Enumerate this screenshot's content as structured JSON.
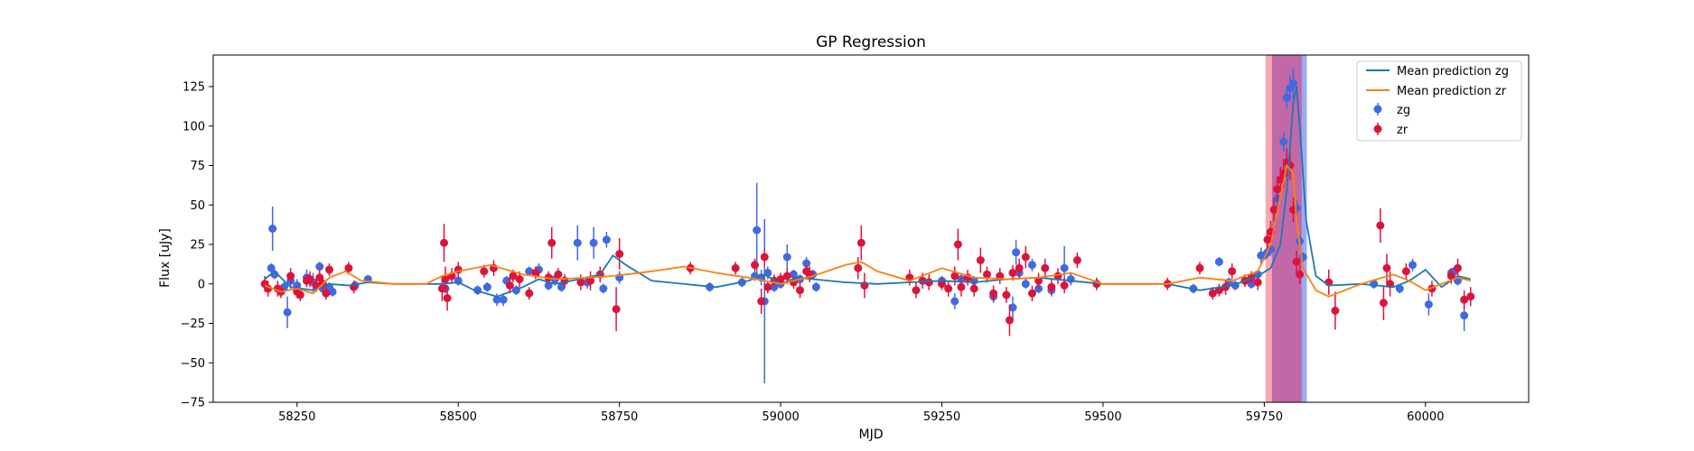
{
  "chart_data": {
    "type": "scatter",
    "title": "GP Regression",
    "xlabel": "MJD",
    "ylabel": "Flux [uJy]",
    "xlim": [
      58120,
      60160
    ],
    "ylim": [
      -75,
      145
    ],
    "xticks": [
      58250,
      58500,
      58750,
      59000,
      59250,
      59500,
      59750,
      60000
    ],
    "yticks": [
      -75,
      -50,
      -25,
      0,
      25,
      50,
      75,
      100,
      125
    ],
    "grid": false,
    "legend_position": "top-right",
    "shaded_regions": [
      {
        "x0": 59752,
        "x1": 59808,
        "color": "#f4a0a6"
      },
      {
        "x0": 59762,
        "x1": 59816,
        "color": "#8fa3f0"
      },
      {
        "x0": 59762,
        "x1": 59808,
        "color": "#c265a4"
      }
    ],
    "series": [
      {
        "name": "Mean prediction zg",
        "kind": "line",
        "color": "#1f77b4",
        "x": [
          58200,
          58215,
          58240,
          58275,
          58300,
          58330,
          58360,
          58400,
          58450,
          58475,
          58500,
          58525,
          58560,
          58600,
          58625,
          58650,
          58675,
          58700,
          58720,
          58740,
          58760,
          58800,
          58900,
          58950,
          58975,
          59000,
          59025,
          59050,
          59100,
          59150,
          59200,
          59250,
          59300,
          59350,
          59400,
          59450,
          59500,
          59550,
          59600,
          59650,
          59700,
          59740,
          59760,
          59775,
          59785,
          59795,
          59800,
          59805,
          59815,
          59830,
          59850,
          59900,
          59950,
          59975,
          60000,
          60025,
          60050,
          60070
        ],
        "y": [
          3,
          8,
          -2,
          -4,
          0,
          -1,
          1,
          0,
          0,
          0,
          1,
          -4,
          -8,
          -2,
          3,
          0,
          2,
          4,
          6,
          18,
          12,
          2,
          -2,
          2,
          6,
          0,
          4,
          3,
          1,
          0,
          1,
          2,
          1,
          3,
          4,
          2,
          0,
          0,
          0,
          -4,
          -1,
          5,
          10,
          25,
          60,
          115,
          125,
          100,
          40,
          5,
          -1,
          0,
          -2,
          2,
          9,
          -2,
          5,
          3
        ]
      },
      {
        "name": "Mean prediction zr",
        "kind": "line",
        "color": "#ff7f0e",
        "x": [
          58200,
          58225,
          58250,
          58275,
          58300,
          58325,
          58350,
          58400,
          58450,
          58475,
          58500,
          58550,
          58600,
          58650,
          58700,
          58740,
          58760,
          58800,
          58850,
          58900,
          58950,
          59000,
          59050,
          59100,
          59125,
          59150,
          59200,
          59250,
          59300,
          59350,
          59400,
          59450,
          59500,
          59550,
          59600,
          59650,
          59700,
          59740,
          59760,
          59775,
          59785,
          59795,
          59800,
          59810,
          59830,
          59850,
          59875,
          59900,
          59950,
          59975,
          60000,
          60025,
          60050,
          60070
        ],
        "y": [
          -1,
          -5,
          -3,
          -6,
          4,
          8,
          2,
          0,
          0,
          5,
          8,
          12,
          6,
          3,
          4,
          5,
          6,
          8,
          11,
          7,
          4,
          0,
          5,
          12,
          14,
          8,
          2,
          10,
          4,
          3,
          4,
          7,
          0,
          0,
          0,
          4,
          2,
          8,
          25,
          55,
          75,
          70,
          40,
          10,
          -4,
          -8,
          -4,
          0,
          6,
          2,
          -4,
          0,
          4,
          2
        ]
      },
      {
        "name": "zg",
        "kind": "errorbar",
        "color": "#4169e1",
        "points": [
          [
            58210,
            10,
            3
          ],
          [
            58212,
            35,
            14
          ],
          [
            58215,
            6,
            3
          ],
          [
            58230,
            -2,
            4
          ],
          [
            58235,
            -18,
            10
          ],
          [
            58240,
            2,
            5
          ],
          [
            58250,
            -1,
            4
          ],
          [
            58265,
            4,
            5
          ],
          [
            58275,
            1,
            6
          ],
          [
            58285,
            11,
            3
          ],
          [
            58290,
            -3,
            3
          ],
          [
            58300,
            -2,
            3
          ],
          [
            58305,
            -5,
            3
          ],
          [
            58340,
            -1,
            3
          ],
          [
            58360,
            3,
            2
          ],
          [
            58480,
            -3,
            3
          ],
          [
            58500,
            2,
            3
          ],
          [
            58530,
            -4,
            3
          ],
          [
            58545,
            -2,
            3
          ],
          [
            58560,
            -10,
            4
          ],
          [
            58570,
            -10,
            4
          ],
          [
            58575,
            2,
            3
          ],
          [
            58590,
            -4,
            3
          ],
          [
            58610,
            8,
            3
          ],
          [
            58625,
            9,
            4
          ],
          [
            58640,
            -1,
            3
          ],
          [
            58650,
            3,
            4
          ],
          [
            58660,
            -2,
            3
          ],
          [
            58685,
            26,
            11
          ],
          [
            58700,
            1,
            4
          ],
          [
            58710,
            26,
            10
          ],
          [
            58725,
            -3,
            3
          ],
          [
            58730,
            28,
            5
          ],
          [
            58750,
            4,
            4
          ],
          [
            58890,
            -2,
            3
          ],
          [
            58940,
            1,
            3
          ],
          [
            58960,
            5,
            3
          ],
          [
            58963,
            34,
            30
          ],
          [
            58970,
            4,
            5
          ],
          [
            58975,
            -11,
            52
          ],
          [
            58980,
            7,
            4
          ],
          [
            58990,
            -2,
            3
          ],
          [
            59000,
            0,
            3
          ],
          [
            59010,
            17,
            8
          ],
          [
            59020,
            6,
            3
          ],
          [
            59030,
            3,
            3
          ],
          [
            59040,
            13,
            4
          ],
          [
            59050,
            6,
            3
          ],
          [
            59055,
            -2,
            3
          ],
          [
            59230,
            1,
            3
          ],
          [
            59250,
            2,
            3
          ],
          [
            59270,
            -11,
            5
          ],
          [
            59280,
            3,
            3
          ],
          [
            59300,
            2,
            3
          ],
          [
            59330,
            -8,
            4
          ],
          [
            59360,
            -15,
            7
          ],
          [
            59365,
            20,
            8
          ],
          [
            59370,
            7,
            4
          ],
          [
            59380,
            0,
            3
          ],
          [
            59390,
            12,
            4
          ],
          [
            59400,
            -3,
            3
          ],
          [
            59420,
            -4,
            4
          ],
          [
            59440,
            10,
            14
          ],
          [
            59450,
            3,
            4
          ],
          [
            59640,
            -3,
            3
          ],
          [
            59680,
            14,
            3
          ],
          [
            59695,
            1,
            3
          ],
          [
            59705,
            -1,
            3
          ],
          [
            59720,
            2,
            3
          ],
          [
            59730,
            0,
            3
          ],
          [
            59740,
            6,
            3
          ],
          [
            59745,
            18,
            5
          ],
          [
            59750,
            18,
            3
          ],
          [
            59755,
            20,
            3
          ],
          [
            59760,
            22,
            4
          ],
          [
            59770,
            54,
            5
          ],
          [
            59780,
            90,
            6
          ],
          [
            59785,
            118,
            7
          ],
          [
            59790,
            124,
            8
          ],
          [
            59795,
            127,
            10
          ],
          [
            59800,
            48,
            5
          ],
          [
            59805,
            27,
            4
          ],
          [
            59810,
            17,
            3
          ],
          [
            59920,
            0,
            3
          ],
          [
            59960,
            -3,
            3
          ],
          [
            59980,
            12,
            4
          ],
          [
            60005,
            -13,
            7
          ],
          [
            60040,
            7,
            3
          ],
          [
            60045,
            8,
            3
          ],
          [
            60050,
            2,
            3
          ],
          [
            60060,
            -20,
            10
          ]
        ]
      },
      {
        "name": "zr",
        "kind": "errorbar",
        "color": "#dc143c",
        "points": [
          [
            58200,
            0,
            5
          ],
          [
            58205,
            -3,
            5
          ],
          [
            58220,
            -3,
            5
          ],
          [
            58225,
            -5,
            4
          ],
          [
            58240,
            5,
            5
          ],
          [
            58250,
            -5,
            4
          ],
          [
            58255,
            -7,
            4
          ],
          [
            58265,
            2,
            4
          ],
          [
            58270,
            3,
            5
          ],
          [
            58280,
            -1,
            4
          ],
          [
            58285,
            4,
            5
          ],
          [
            58290,
            0,
            4
          ],
          [
            58295,
            -6,
            4
          ],
          [
            58300,
            9,
            4
          ],
          [
            58330,
            10,
            4
          ],
          [
            58338,
            -2,
            4
          ],
          [
            58475,
            -3,
            8
          ],
          [
            58478,
            26,
            12
          ],
          [
            58480,
            3,
            8
          ],
          [
            58483,
            -9,
            8
          ],
          [
            58490,
            5,
            5
          ],
          [
            58500,
            9,
            5
          ],
          [
            58540,
            8,
            4
          ],
          [
            58555,
            10,
            5
          ],
          [
            58580,
            -1,
            5
          ],
          [
            58585,
            5,
            4
          ],
          [
            58595,
            3,
            5
          ],
          [
            58610,
            -6,
            4
          ],
          [
            58620,
            7,
            4
          ],
          [
            58640,
            4,
            4
          ],
          [
            58645,
            26,
            10
          ],
          [
            58655,
            6,
            4
          ],
          [
            58665,
            2,
            4
          ],
          [
            58690,
            1,
            5
          ],
          [
            58705,
            2,
            6
          ],
          [
            58720,
            6,
            5
          ],
          [
            58745,
            -16,
            14
          ],
          [
            58750,
            19,
            10
          ],
          [
            58860,
            10,
            4
          ],
          [
            58930,
            10,
            4
          ],
          [
            58960,
            12,
            4
          ],
          [
            58970,
            -11,
            8
          ],
          [
            58975,
            17,
            6
          ],
          [
            58980,
            -2,
            4
          ],
          [
            58990,
            2,
            4
          ],
          [
            59000,
            3,
            4
          ],
          [
            59010,
            5,
            5
          ],
          [
            59020,
            1,
            4
          ],
          [
            59030,
            -4,
            5
          ],
          [
            59040,
            8,
            4
          ],
          [
            59045,
            6,
            5
          ],
          [
            59120,
            10,
            7
          ],
          [
            59125,
            26,
            11
          ],
          [
            59130,
            -1,
            8
          ],
          [
            59200,
            4,
            5
          ],
          [
            59210,
            -4,
            5
          ],
          [
            59220,
            2,
            5
          ],
          [
            59230,
            1,
            5
          ],
          [
            59250,
            0,
            4
          ],
          [
            59260,
            -3,
            5
          ],
          [
            59270,
            5,
            6
          ],
          [
            59275,
            25,
            10
          ],
          [
            59280,
            -2,
            6
          ],
          [
            59290,
            4,
            5
          ],
          [
            59300,
            -3,
            5
          ],
          [
            59310,
            15,
            8
          ],
          [
            59320,
            6,
            5
          ],
          [
            59330,
            -6,
            5
          ],
          [
            59340,
            5,
            5
          ],
          [
            59350,
            -7,
            5
          ],
          [
            59355,
            -23,
            10
          ],
          [
            59360,
            7,
            5
          ],
          [
            59370,
            10,
            6
          ],
          [
            59380,
            17,
            7
          ],
          [
            59390,
            -6,
            5
          ],
          [
            59400,
            2,
            5
          ],
          [
            59410,
            10,
            6
          ],
          [
            59420,
            -2,
            5
          ],
          [
            59430,
            5,
            5
          ],
          [
            59440,
            -1,
            5
          ],
          [
            59460,
            15,
            5
          ],
          [
            59490,
            0,
            4
          ],
          [
            59600,
            0,
            4
          ],
          [
            59650,
            10,
            4
          ],
          [
            59670,
            -6,
            4
          ],
          [
            59680,
            -4,
            4
          ],
          [
            59690,
            -2,
            5
          ],
          [
            59700,
            8,
            5
          ],
          [
            59720,
            2,
            4
          ],
          [
            59730,
            4,
            4
          ],
          [
            59740,
            1,
            5
          ],
          [
            59755,
            28,
            6
          ],
          [
            59760,
            33,
            7
          ],
          [
            59765,
            47,
            7
          ],
          [
            59770,
            60,
            8
          ],
          [
            59775,
            66,
            8
          ],
          [
            59780,
            70,
            9
          ],
          [
            59785,
            77,
            9
          ],
          [
            59790,
            75,
            9
          ],
          [
            59795,
            47,
            8
          ],
          [
            59800,
            14,
            7
          ],
          [
            59805,
            6,
            6
          ],
          [
            59850,
            1,
            8
          ],
          [
            59860,
            -17,
            12
          ],
          [
            59930,
            37,
            11
          ],
          [
            59935,
            -12,
            11
          ],
          [
            59940,
            10,
            9
          ],
          [
            59945,
            0,
            8
          ],
          [
            59970,
            8,
            5
          ],
          [
            60010,
            -3,
            5
          ],
          [
            60040,
            5,
            5
          ],
          [
            60050,
            10,
            6
          ],
          [
            60060,
            -10,
            6
          ],
          [
            60070,
            -8,
            6
          ]
        ]
      }
    ]
  }
}
